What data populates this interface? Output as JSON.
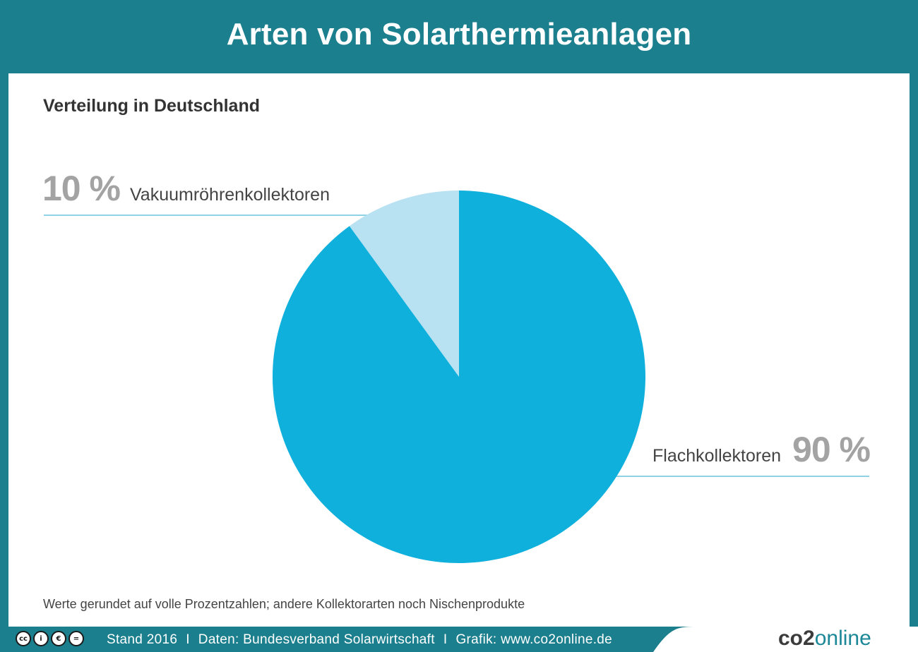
{
  "header": {
    "title": "Arten von Solarthermieanlagen"
  },
  "chart_data": {
    "type": "pie",
    "title": "Arten von Solarthermieanlagen",
    "subtitle": "Verteilung in Deutschland",
    "slices": [
      {
        "label": "Vakuumröhrenkollektoren",
        "value": 10,
        "display": "10 %",
        "color": "#b8e1f2"
      },
      {
        "label": "Flachkollektoren",
        "value": 90,
        "display": "90 %",
        "color": "#10b0dc"
      }
    ],
    "note": "Werte gerundet auf volle Prozentzahlen; andere Kollektorarten noch Nischenprodukte",
    "leader_color": "#8fd2e6"
  },
  "footer": {
    "license_icons": [
      "cc-icon",
      "by-icon",
      "nc-icon",
      "nd-icon"
    ],
    "license_glyphs": [
      "cc",
      "i",
      "€",
      "="
    ],
    "stand": "Stand 2016",
    "daten": "Daten: Bundesverband Solarwirtschaft",
    "grafik": "Grafik: www.co2online.de",
    "separator": "I",
    "logo_part1": "co2",
    "logo_part2": "online"
  }
}
